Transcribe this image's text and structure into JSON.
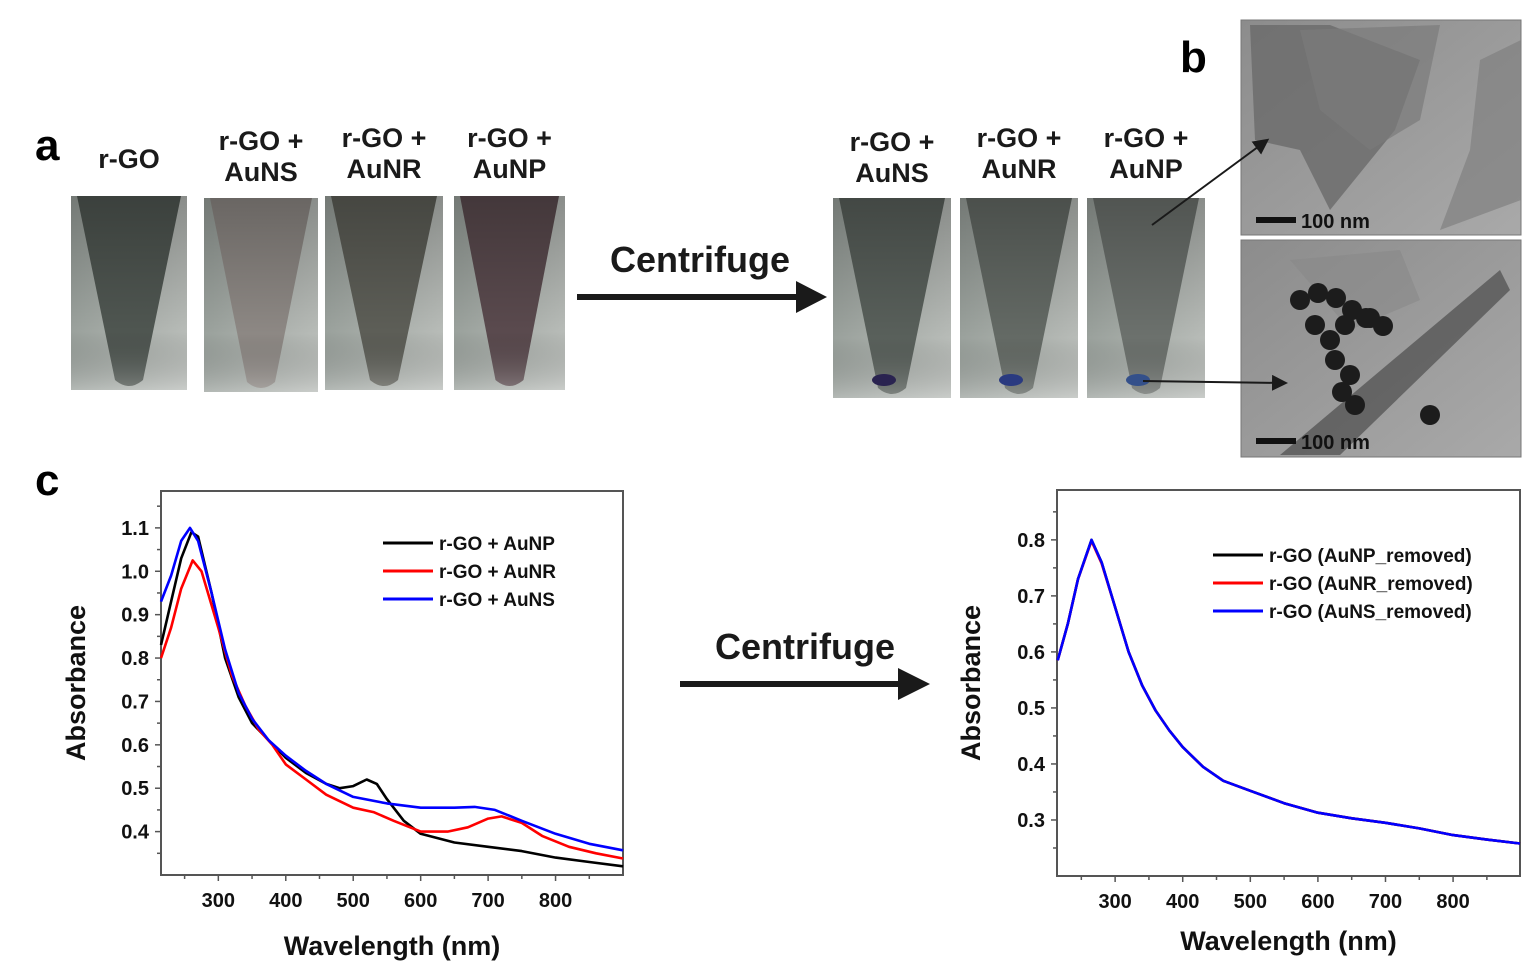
{
  "panels": {
    "a": "a",
    "b": "b",
    "c": "c"
  },
  "photos_before": [
    {
      "line1": "r-GO",
      "line2": "",
      "tint": "#4f5651"
    },
    {
      "line1": "r-GO +",
      "line2": "AuNS",
      "tint": "#8d8884"
    },
    {
      "line1": "r-GO +",
      "line2": "AuNR",
      "tint": "#5d5e57"
    },
    {
      "line1": "r-GO +",
      "line2": "AuNP",
      "tint": "#5a4a4e"
    }
  ],
  "photos_after": [
    {
      "line1": "r-GO +",
      "line2": "AuNS",
      "tint": "#59605b",
      "pellet": "#2a2350"
    },
    {
      "line1": "r-GO +",
      "line2": "AuNR",
      "tint": "#646a65",
      "pellet": "#2a3a80"
    },
    {
      "line1": "r-GO +",
      "line2": "AuNP",
      "tint": "#6c716d",
      "pellet": "#34508a"
    }
  ],
  "centrifuge_label_top": "Centrifuge",
  "centrifuge_label_bottom": "Centrifuge",
  "tem_images": [
    {
      "scale_bar": "100 nm",
      "content": "r-GO sheets"
    },
    {
      "scale_bar": "100 nm",
      "content": "r-GO sheets with AuNP"
    }
  ],
  "chart_data": [
    {
      "type": "line",
      "xlabel": "Wavelength (nm)",
      "ylabel": "Absorbance",
      "xlim": [
        215,
        900
      ],
      "ylim": [
        0.3,
        1.185
      ],
      "xticks": [
        "300",
        "400",
        "500",
        "600",
        "700",
        "800"
      ],
      "yticks": [
        "0.4",
        "0.5",
        "0.6",
        "0.7",
        "0.8",
        "0.9",
        "1.0",
        "1.1"
      ],
      "grid": false,
      "legend_position": "top-right",
      "series": [
        {
          "name": "r-GO + AuNP",
          "color": "#000000",
          "x": [
            215,
            230,
            245,
            260,
            270,
            290,
            310,
            330,
            350,
            375,
            400,
            430,
            460,
            480,
            500,
            520,
            535,
            550,
            575,
            600,
            650,
            700,
            750,
            800,
            850,
            900
          ],
          "y": [
            0.83,
            0.93,
            1.03,
            1.09,
            1.08,
            0.95,
            0.8,
            0.71,
            0.65,
            0.61,
            0.57,
            0.535,
            0.51,
            0.5,
            0.505,
            0.52,
            0.51,
            0.475,
            0.425,
            0.395,
            0.375,
            0.365,
            0.355,
            0.34,
            0.33,
            0.32
          ]
        },
        {
          "name": "r-GO + AuNR",
          "color": "#ff0000",
          "x": [
            215,
            230,
            245,
            262,
            275,
            300,
            320,
            340,
            360,
            380,
            400,
            430,
            460,
            500,
            530,
            560,
            600,
            640,
            670,
            700,
            720,
            750,
            780,
            820,
            860,
            900
          ],
          "y": [
            0.8,
            0.87,
            0.96,
            1.025,
            1.0,
            0.87,
            0.76,
            0.69,
            0.635,
            0.6,
            0.555,
            0.52,
            0.485,
            0.455,
            0.445,
            0.425,
            0.4,
            0.4,
            0.41,
            0.43,
            0.435,
            0.42,
            0.39,
            0.365,
            0.35,
            0.338
          ]
        },
        {
          "name": "r-GO + AuNS",
          "color": "#0000ff",
          "x": [
            215,
            230,
            245,
            258,
            270,
            290,
            310,
            330,
            350,
            375,
            400,
            430,
            460,
            500,
            550,
            600,
            650,
            680,
            710,
            750,
            800,
            850,
            900
          ],
          "y": [
            0.93,
            0.99,
            1.07,
            1.1,
            1.07,
            0.95,
            0.82,
            0.72,
            0.66,
            0.61,
            0.575,
            0.54,
            0.51,
            0.48,
            0.465,
            0.455,
            0.455,
            0.457,
            0.45,
            0.425,
            0.395,
            0.372,
            0.357
          ]
        }
      ]
    },
    {
      "type": "line",
      "xlabel": "Wavelength (nm)",
      "ylabel": "Absorbance",
      "xlim": [
        214,
        899
      ],
      "ylim": [
        0.2,
        0.889
      ],
      "xticks": [
        "300",
        "400",
        "500",
        "600",
        "700",
        "800"
      ],
      "yticks": [
        "0.3",
        "0.4",
        "0.5",
        "0.6",
        "0.7",
        "0.8"
      ],
      "grid": false,
      "legend_position": "top-right",
      "series": [
        {
          "name": "r-GO (AuNP_removed)",
          "color": "#000000",
          "x": [
            215,
            230,
            245,
            265,
            280,
            300,
            320,
            340,
            360,
            380,
            400,
            430,
            460,
            500,
            550,
            600,
            650,
            700,
            750,
            800,
            850,
            899
          ],
          "y": [
            0.585,
            0.65,
            0.73,
            0.8,
            0.76,
            0.68,
            0.6,
            0.54,
            0.495,
            0.46,
            0.43,
            0.395,
            0.37,
            0.352,
            0.33,
            0.313,
            0.303,
            0.295,
            0.285,
            0.273,
            0.265,
            0.258
          ]
        },
        {
          "name": "r-GO (AuNR_removed)",
          "color": "#ff0000",
          "x": [
            215,
            230,
            245,
            265,
            280,
            300,
            320,
            340,
            360,
            380,
            400,
            430,
            460,
            500,
            550,
            600,
            650,
            700,
            750,
            800,
            850,
            899
          ],
          "y": [
            0.585,
            0.65,
            0.73,
            0.798,
            0.758,
            0.68,
            0.6,
            0.54,
            0.495,
            0.46,
            0.43,
            0.395,
            0.37,
            0.352,
            0.33,
            0.313,
            0.303,
            0.295,
            0.285,
            0.273,
            0.265,
            0.258
          ]
        },
        {
          "name": "r-GO (AuNS_removed)",
          "color": "#0000ff",
          "x": [
            215,
            230,
            245,
            265,
            280,
            300,
            320,
            340,
            360,
            380,
            400,
            430,
            460,
            500,
            550,
            600,
            650,
            700,
            750,
            800,
            850,
            899
          ],
          "y": [
            0.585,
            0.65,
            0.73,
            0.8,
            0.76,
            0.68,
            0.6,
            0.54,
            0.495,
            0.46,
            0.43,
            0.395,
            0.37,
            0.352,
            0.33,
            0.313,
            0.303,
            0.295,
            0.285,
            0.273,
            0.265,
            0.258
          ]
        }
      ]
    }
  ]
}
